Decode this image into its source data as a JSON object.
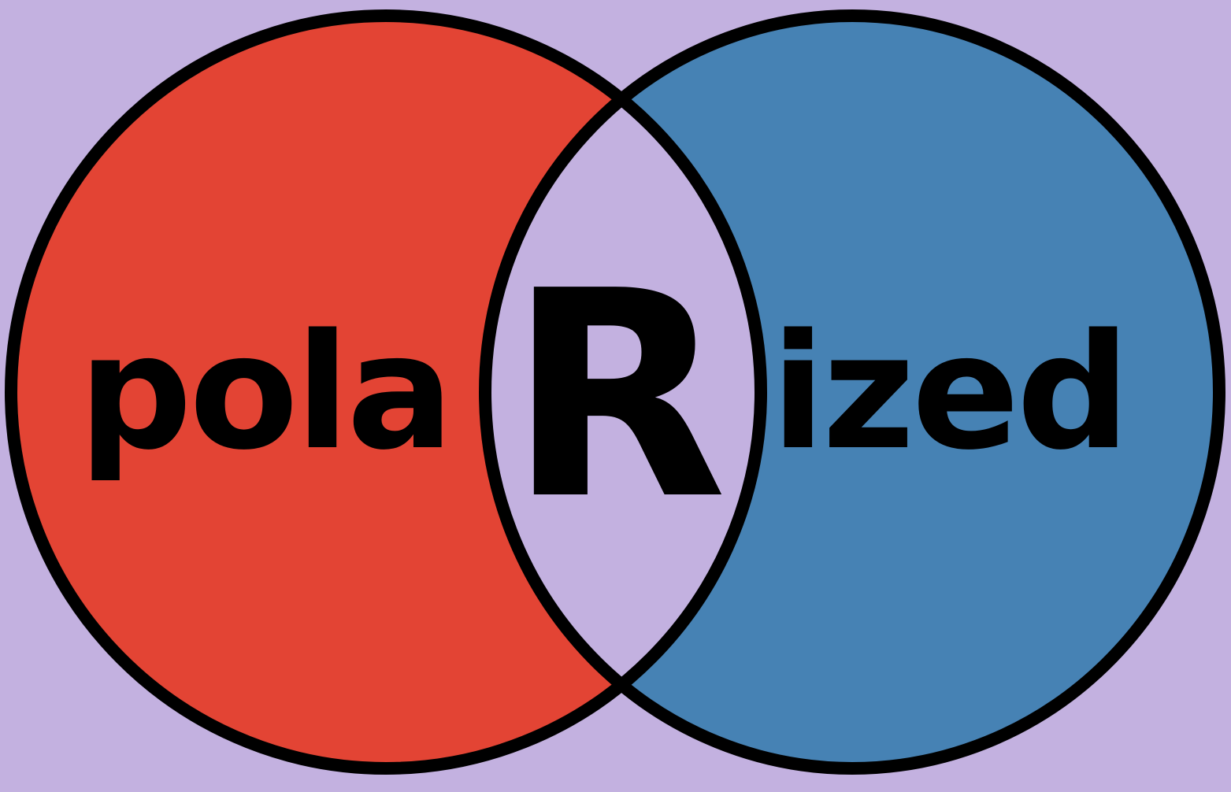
{
  "logo": {
    "left_text": "pola",
    "center_letter": "R",
    "right_text": "ized"
  },
  "colors": {
    "background": "#c3b1e0",
    "left_circle": "#e34434",
    "right_circle": "#4682b4",
    "overlap": "#c3b1e0",
    "outline": "#000000",
    "text": "#000000"
  }
}
